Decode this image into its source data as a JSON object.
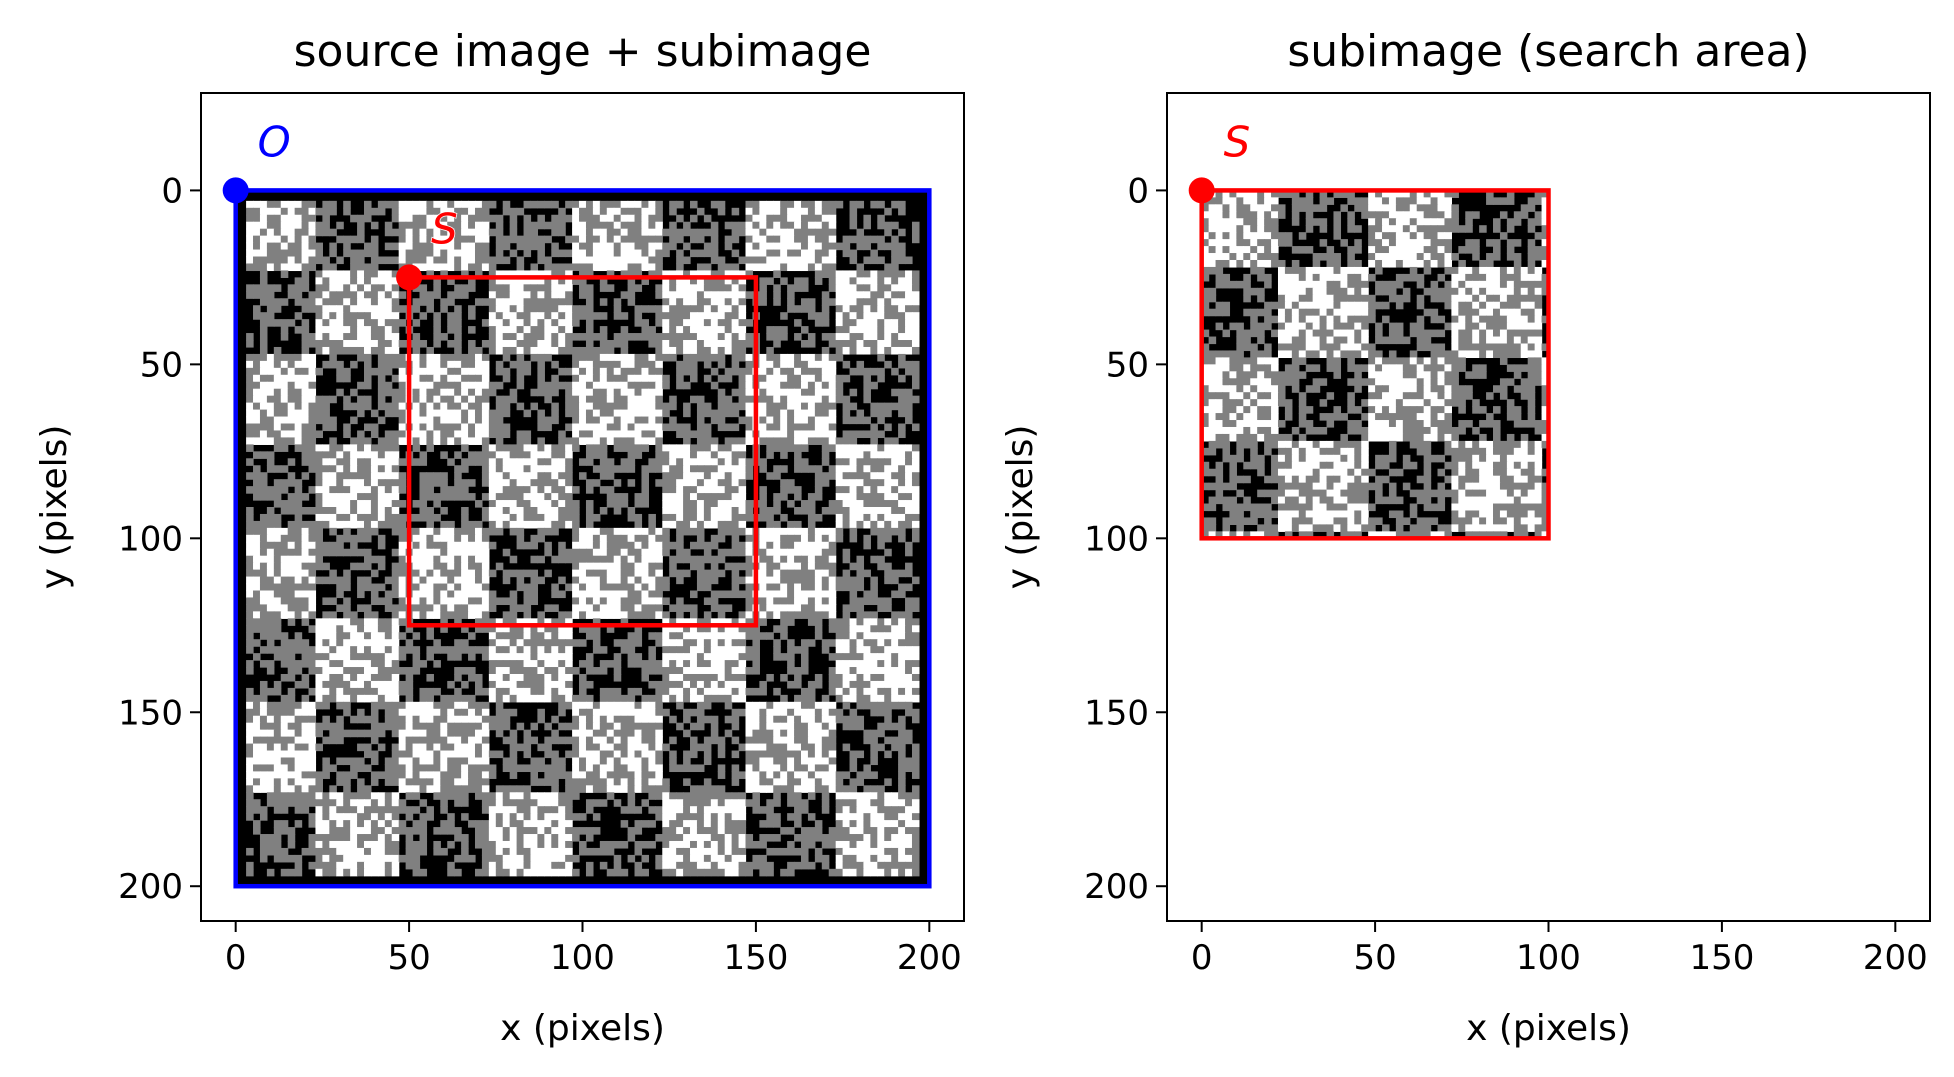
{
  "chart_data": [
    {
      "type": "image",
      "title": "source image + subimage",
      "xlabel": "x (pixels)",
      "ylabel": "y (pixels)",
      "xlim": [
        -10,
        210
      ],
      "ylim": [
        210,
        -28
      ],
      "xticks": [
        0,
        50,
        100,
        150,
        200
      ],
      "yticks": [
        0,
        50,
        100,
        150,
        200
      ],
      "xtick_labels": [
        "0",
        "50",
        "100",
        "150",
        "200"
      ],
      "ytick_labels": [
        "0",
        "50",
        "100",
        "150",
        "200"
      ],
      "image": {
        "x0": 0,
        "y0": 0,
        "x1": 200,
        "y1": 200,
        "content": "noisy checkerboard",
        "border": 3,
        "tile_size": 25,
        "tile_offset": 3
      },
      "rectangles": [
        {
          "name": "source",
          "x0": 0,
          "y0": 0,
          "x1": 200,
          "y1": 200,
          "color": "#0000ff"
        },
        {
          "name": "subimage",
          "x0": 50,
          "y0": 25,
          "x1": 150,
          "y1": 125,
          "color": "#ff0000"
        }
      ],
      "points": [
        {
          "label": "O",
          "x": 0,
          "y": 0,
          "color": "#0000ff"
        },
        {
          "label": "S",
          "x": 50,
          "y": 25,
          "color": "#ff0000"
        }
      ]
    },
    {
      "type": "image",
      "title": "subimage (search area)",
      "xlabel": "x (pixels)",
      "ylabel": "y (pixels)",
      "xlim": [
        -10,
        210
      ],
      "ylim": [
        210,
        -28
      ],
      "xticks": [
        0,
        50,
        100,
        150,
        200
      ],
      "yticks": [
        0,
        50,
        100,
        150,
        200
      ],
      "xtick_labels": [
        "0",
        "50",
        "100",
        "150",
        "200"
      ],
      "ytick_labels": [
        "0",
        "50",
        "100",
        "150",
        "200"
      ],
      "image": {
        "x0": 0,
        "y0": 0,
        "x1": 100,
        "y1": 100,
        "content": "noisy checkerboard",
        "border": 0,
        "tile_size": 25,
        "tile_offset": 3
      },
      "rectangles": [
        {
          "name": "subimage",
          "x0": 0,
          "y0": 0,
          "x1": 100,
          "y1": 100,
          "color": "#ff0000"
        }
      ],
      "points": [
        {
          "label": "S",
          "x": 0,
          "y": 0,
          "color": "#ff0000"
        }
      ]
    }
  ]
}
